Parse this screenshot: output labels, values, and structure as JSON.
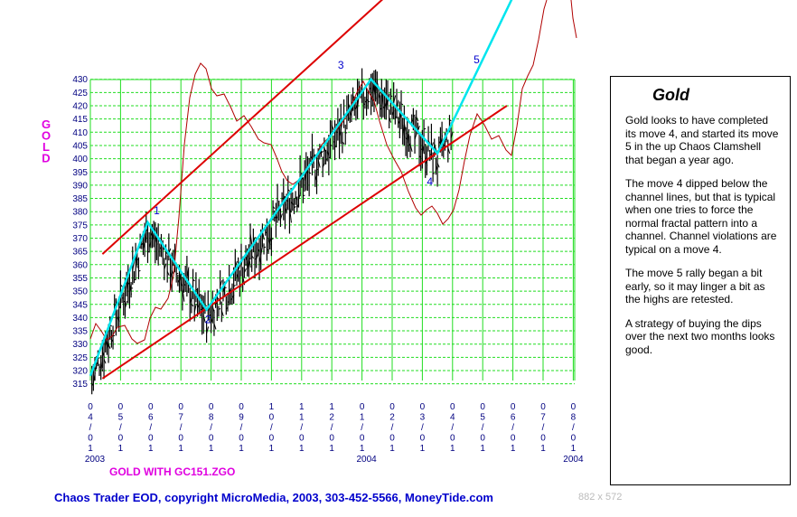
{
  "chart_data": {
    "type": "line",
    "title": "",
    "ylabel": "GOLD",
    "subtitle": "GOLD WITH GC151.ZGO",
    "ylim": [
      315,
      430
    ],
    "yticks": [
      315,
      320,
      325,
      330,
      335,
      340,
      345,
      350,
      355,
      360,
      365,
      370,
      375,
      380,
      385,
      390,
      395,
      400,
      405,
      410,
      415,
      420,
      425,
      430
    ],
    "x_ticks": [
      "04/01",
      "05/01",
      "06/01",
      "07/01",
      "08/01",
      "09/01",
      "10/01",
      "11/01",
      "12/01",
      "01/01",
      "02/01",
      "03/01",
      "04/01",
      "05/01",
      "06/01",
      "07/01",
      "08/01"
    ],
    "year_labels": [
      "2003",
      "2004",
      "2004"
    ],
    "grid": true,
    "series": [
      {
        "kind": "zigzag",
        "color": "#00e5ee",
        "points": [
          {
            "m": 0,
            "v": 318
          },
          {
            "m": 1.9,
            "v": 376
          },
          {
            "m": 3.85,
            "v": 343
          },
          {
            "m": 9.3,
            "v": 430
          },
          {
            "m": 11.5,
            "v": 402
          },
          {
            "m": 14.8,
            "v": 480
          }
        ]
      }
    ],
    "channel": {
      "color": "#dd0000",
      "upper": {
        "from": {
          "m": 0.4,
          "v": 364
        },
        "to": {
          "m": 11.4,
          "v": 478
        }
      },
      "lower": {
        "from": {
          "m": 0.4,
          "v": 317
        },
        "to": {
          "m": 13.8,
          "v": 420
        }
      }
    },
    "wave_labels": [
      {
        "text": "1",
        "m": 2.2,
        "v": 379
      },
      {
        "text": "2",
        "m": 3.9,
        "v": 338
      },
      {
        "text": "3",
        "m": 8.3,
        "v": 434
      },
      {
        "text": "4",
        "m": 11.25,
        "v": 390
      },
      {
        "text": "5",
        "m": 12.8,
        "v": 436
      }
    ]
  },
  "commentary": {
    "title": "Gold",
    "paragraphs": [
      "Gold looks to have completed its move 4, and started its move 5 in the up Chaos Clamshell that began a year ago.",
      "The move 4 dipped below the channel lines, but that is typical when one tries to force the normal fractal pattern into a channel. Channel violations are typical on a move 4.",
      "The move 5 rally began a bit early, so it may linger a bit as the highs are retested.",
      "A strategy of buying the dips over the next two months looks good."
    ]
  },
  "footer": "Chaos Trader EOD, copyright MicroMedia, 2003, 303-452-5566, MoneyTide.com",
  "dimensions_label": "882 x 572",
  "colors": {
    "grid": "#22dd22",
    "channel": "#dd0000",
    "zigzag": "#00e5ee",
    "oscillator": "#b00000",
    "bars": "#000000",
    "gold_label": "#e000e0",
    "axis_text": "#000080"
  }
}
